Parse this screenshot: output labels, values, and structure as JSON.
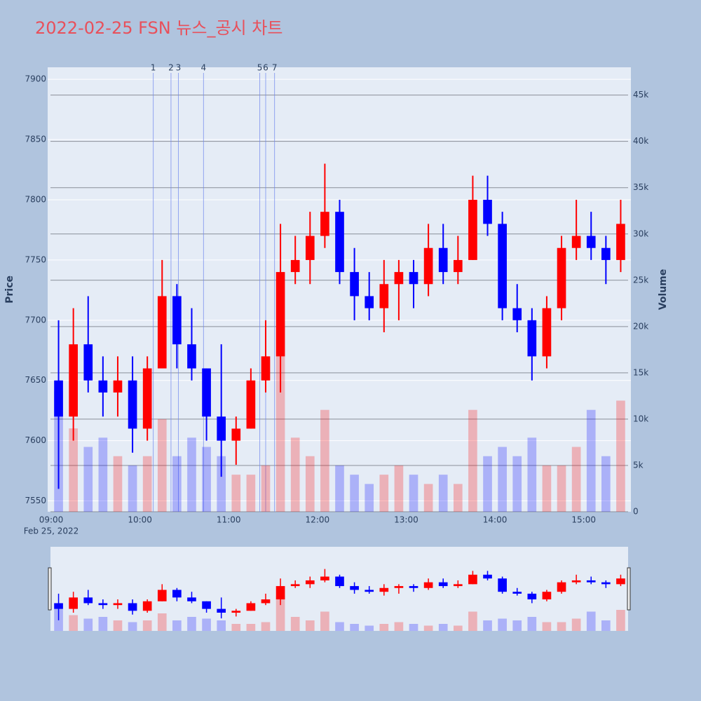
{
  "chart_data": {
    "type": "candlestick",
    "title": "2022-02-25 FSN 뉴스_공시 차트",
    "y_label": "Price",
    "y2_label": "Volume",
    "x_date_label": "Feb 25, 2022",
    "increasing_color": "#ff0000",
    "decreasing_color": "#0000ff",
    "x": [
      "09:00",
      "09:10",
      "09:20",
      "09:30",
      "09:40",
      "09:50",
      "10:00",
      "10:10",
      "10:20",
      "10:30",
      "10:40",
      "10:50",
      "11:00",
      "11:10",
      "11:20",
      "11:30",
      "11:40",
      "11:50",
      "12:00",
      "12:10",
      "12:20",
      "12:30",
      "12:40",
      "12:50",
      "13:00",
      "13:10",
      "13:20",
      "13:30",
      "13:40",
      "13:50",
      "14:00",
      "14:10",
      "14:20",
      "14:30",
      "14:40",
      "14:50",
      "15:00",
      "15:10",
      "15:20"
    ],
    "open": [
      7650,
      7620,
      7680,
      7650,
      7640,
      7650,
      7610,
      7660,
      7720,
      7680,
      7660,
      7620,
      7600,
      7610,
      7650,
      7670,
      7740,
      7750,
      7770,
      7790,
      7740,
      7720,
      7710,
      7730,
      7740,
      7730,
      7760,
      7740,
      7750,
      7800,
      7780,
      7710,
      7700,
      7670,
      7710,
      7760,
      7770,
      7760,
      7750
    ],
    "high": [
      7700,
      7710,
      7720,
      7670,
      7670,
      7670,
      7670,
      7750,
      7730,
      7710,
      7660,
      7680,
      7620,
      7660,
      7700,
      7780,
      7770,
      7790,
      7830,
      7800,
      7760,
      7740,
      7750,
      7750,
      7750,
      7780,
      7780,
      7770,
      7820,
      7820,
      7790,
      7730,
      7710,
      7720,
      7770,
      7800,
      7790,
      7770,
      7800
    ],
    "low": [
      7560,
      7600,
      7640,
      7620,
      7620,
      7590,
      7600,
      7660,
      7660,
      7650,
      7600,
      7570,
      7580,
      7610,
      7640,
      7640,
      7730,
      7730,
      7760,
      7730,
      7700,
      7700,
      7690,
      7700,
      7710,
      7720,
      7730,
      7730,
      7750,
      7770,
      7700,
      7690,
      7650,
      7660,
      7700,
      7750,
      7750,
      7730,
      7740
    ],
    "close": [
      7620,
      7680,
      7650,
      7640,
      7650,
      7610,
      7660,
      7720,
      7680,
      7660,
      7620,
      7600,
      7610,
      7650,
      7670,
      7740,
      7750,
      7770,
      7790,
      7740,
      7720,
      7710,
      7730,
      7740,
      7730,
      7760,
      7740,
      7750,
      7800,
      7780,
      7710,
      7700,
      7670,
      7710,
      7760,
      7770,
      7760,
      7750,
      7780
    ],
    "volume": [
      13000,
      9000,
      7000,
      8000,
      6000,
      5000,
      6000,
      10000,
      6000,
      8000,
      7000,
      6000,
      4000,
      4000,
      5000,
      20000,
      8000,
      6000,
      11000,
      5000,
      4000,
      3000,
      4000,
      5000,
      4000,
      3000,
      4000,
      3000,
      11000,
      6000,
      7000,
      6000,
      8000,
      5000,
      5000,
      7000,
      11000,
      6000,
      12000
    ],
    "news": [
      {
        "label": "1",
        "time": "10:09"
      },
      {
        "label": "2",
        "time": "10:21"
      },
      {
        "label": "3",
        "time": "10:26"
      },
      {
        "label": "4",
        "time": "10:43"
      },
      {
        "label": "5",
        "time": "11:21"
      },
      {
        "label": "6",
        "time": "11:25"
      },
      {
        "label": "7",
        "time": "11:31"
      }
    ],
    "xlim": [
      "09:00",
      "15:30"
    ],
    "xticks": [
      "09:00",
      "10:00",
      "11:00",
      "12:00",
      "13:00",
      "14:00",
      "15:00"
    ],
    "ylim": [
      7541,
      7910
    ],
    "yticks": [
      7550,
      7600,
      7650,
      7700,
      7750,
      7800,
      7850,
      7900
    ],
    "y2lim": [
      0,
      48000
    ],
    "y2ticks": [
      0,
      {
        "value": 5000,
        "label": "5k"
      },
      {
        "value": 10000,
        "label": "10k"
      },
      {
        "value": 15000,
        "label": "15k"
      },
      {
        "value": 20000,
        "label": "20k"
      },
      {
        "value": 25000,
        "label": "25k"
      },
      {
        "value": 30000,
        "label": "30k"
      },
      {
        "value": 35000,
        "label": "35k"
      },
      {
        "value": 40000,
        "label": "40k"
      },
      {
        "value": 45000,
        "label": "45k"
      }
    ],
    "grid": true,
    "range_slider": true
  }
}
